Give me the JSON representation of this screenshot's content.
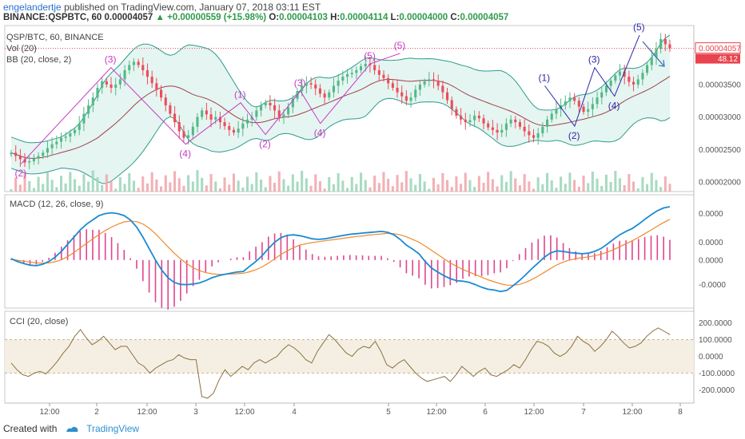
{
  "header": {
    "author": "engelandertje",
    "published_text": "published on TradingView.com, January 07, 2018 03:11 EST"
  },
  "symbol_line": {
    "symbol": "BINANCE:QSPBTC, 60",
    "price": "0.00004057",
    "change": "▲ +0.00000559 (+15.98%)",
    "o_label": "O:",
    "o_value": "0.00004103",
    "h_label": "H:",
    "h_value": "0.00004114",
    "l_label": "L:",
    "l_value": "0.00004000",
    "c_label": "C:",
    "c_value": "0.00004057"
  },
  "colors": {
    "up": "#53b987",
    "down": "#eb4d5c",
    "bb_band": "#2e9c8c",
    "bb_fill": "#dff2ee",
    "bb_basis": "#a0404b",
    "macd": "#1a8ad4",
    "signal": "#f08a2c",
    "hist": "#e0458e",
    "cci": "#8a7040",
    "cci_band": "#f5efe3",
    "wave_magenta": "#c838c8",
    "wave_blue": "#2a2aa8",
    "price_tag": "#e8434e"
  },
  "footer": {
    "created_with": "Created with",
    "brand": "TradingView"
  },
  "chart_data": [
    {
      "type": "candlestick",
      "title": "QSP/BTC, 60, BINANCE",
      "indicators": [
        "Vol (20)",
        "BB (20, close, 2)"
      ],
      "x_tick_labels": [
        "12:00",
        "2",
        "12:00",
        "3",
        "12:00",
        "4",
        "5",
        "12:00",
        "6",
        "12:00",
        "7",
        "12:00",
        "8"
      ],
      "y_tick_labels": [
        "0.00002000",
        "0.00002500",
        "0.00003000",
        "0.00003500"
      ],
      "ylim": [
        1.95e-05,
        4.31e-05
      ],
      "current_price_tag": "0.00004057",
      "volume_tag": "48.12",
      "close": [
        2.45e-05,
        2.4e-05,
        2.35e-05,
        2.3e-05,
        2.32e-05,
        2.36e-05,
        2.4e-05,
        2.45e-05,
        2.52e-05,
        2.58e-05,
        2.62e-05,
        2.68e-05,
        2.7e-05,
        2.75e-05,
        2.8e-05,
        2.9e-05,
        3.05e-05,
        3.18e-05,
        3.3e-05,
        3.45e-05,
        3.55e-05,
        3.5e-05,
        3.45e-05,
        3.5e-05,
        3.58e-05,
        3.72e-05,
        3.8e-05,
        3.85e-05,
        3.8e-05,
        3.72e-05,
        3.62e-05,
        3.52e-05,
        3.42e-05,
        3.3e-05,
        3.18e-05,
        3.05e-05,
        2.92e-05,
        2.78e-05,
        2.68e-05,
        2.72e-05,
        2.85e-05,
        3e-05,
        3.1e-05,
        3.04e-05,
        2.96e-05,
        3e-05,
        2.92e-05,
        2.86e-05,
        2.8e-05,
        2.76e-05,
        2.82e-05,
        2.9e-05,
        2.96e-05,
        3e-05,
        3.1e-05,
        3.18e-05,
        3.22e-05,
        3.18e-05,
        3.1e-05,
        3e-05,
        3.04e-05,
        3.15e-05,
        3.28e-05,
        3.4e-05,
        3.48e-05,
        3.52e-05,
        3.5e-05,
        3.44e-05,
        3.36e-05,
        3.3e-05,
        3.38e-05,
        3.48e-05,
        3.56e-05,
        3.62e-05,
        3.66e-05,
        3.68e-05,
        3.72e-05,
        3.78e-05,
        3.82e-05,
        3.8e-05,
        3.72e-05,
        3.65e-05,
        3.6e-05,
        3.52e-05,
        3.45e-05,
        3.38e-05,
        3.32e-05,
        3.25e-05,
        3.3e-05,
        3.42e-05,
        3.5e-05,
        3.55e-05,
        3.58e-05,
        3.56e-05,
        3.48e-05,
        3.38e-05,
        3.26e-05,
        3.12e-05,
        3.02e-05,
        2.96e-05,
        2.92e-05,
        2.95e-05,
        3.02e-05,
        2.98e-05,
        2.9e-05,
        2.84e-05,
        2.8e-05,
        2.76e-05,
        2.8e-05,
        2.9e-05,
        2.96e-05,
        2.92e-05,
        2.85e-05,
        2.78e-05,
        2.72e-05,
        2.68e-05,
        2.75e-05,
        2.85e-05,
        2.96e-05,
        3.05e-05,
        3.12e-05,
        3.18e-05,
        3.24e-05,
        3.3e-05,
        3.25e-05,
        3.16e-05,
        3.08e-05,
        3.12e-05,
        3.2e-05,
        3.3e-05,
        3.38e-05,
        3.48e-05,
        3.56e-05,
        3.64e-05,
        3.7e-05,
        3.62e-05,
        3.54e-05,
        3.5e-05,
        3.58e-05,
        3.68e-05,
        3.8e-05,
        3.92e-05,
        4.05e-05,
        4.2e-05,
        4.12e-05,
        4.06e-05
      ]
    },
    {
      "type": "line",
      "title": "MACD (12, 26, close, 9)",
      "y_tick_labels": [
        "0.0000",
        "0.0000",
        "0.0000",
        "-0.0000"
      ],
      "macd": [
        0.05,
        -0.05,
        -0.12,
        -0.18,
        -0.2,
        -0.15,
        -0.05,
        0.1,
        0.3,
        0.55,
        0.8,
        1.05,
        1.25,
        1.4,
        1.55,
        1.62,
        1.65,
        1.62,
        1.55,
        1.4,
        1.15,
        0.8,
        0.4,
        0.0,
        -0.35,
        -0.62,
        -0.78,
        -0.85,
        -0.86,
        -0.84,
        -0.8,
        -0.72,
        -0.62,
        -0.55,
        -0.5,
        -0.46,
        -0.42,
        -0.4,
        -0.22,
        -0.05,
        0.15,
        0.4,
        0.62,
        0.78,
        0.86,
        0.88,
        0.85,
        0.8,
        0.74,
        0.72,
        0.74,
        0.78,
        0.82,
        0.86,
        0.9,
        0.92,
        0.94,
        0.96,
        0.98,
        1.0,
        0.97,
        0.88,
        0.72,
        0.52,
        0.38,
        0.22,
        -0.05,
        -0.28,
        -0.42,
        -0.55,
        -0.65,
        -0.72,
        -0.74,
        -0.78,
        -0.86,
        -0.95,
        -1.02,
        -1.05,
        -1.1,
        -1.06,
        -0.9,
        -0.72,
        -0.52,
        -0.3,
        -0.1,
        0.1,
        0.25,
        0.32,
        0.3,
        0.26,
        0.24,
        0.22,
        0.24,
        0.3,
        0.4,
        0.55,
        0.72,
        0.88,
        1.0,
        1.1,
        1.25,
        1.42,
        1.58,
        1.72,
        1.82,
        1.86
      ],
      "signal": [
        0.02,
        -0.01,
        -0.04,
        -0.07,
        -0.1,
        -0.11,
        -0.1,
        -0.06,
        0.01,
        0.12,
        0.26,
        0.42,
        0.58,
        0.74,
        0.89,
        1.03,
        1.15,
        1.25,
        1.33,
        1.36,
        1.34,
        1.26,
        1.11,
        0.92,
        0.69,
        0.46,
        0.24,
        0.04,
        -0.13,
        -0.27,
        -0.37,
        -0.44,
        -0.48,
        -0.5,
        -0.5,
        -0.49,
        -0.48,
        -0.46,
        -0.41,
        -0.34,
        -0.24,
        -0.11,
        0.04,
        0.19,
        0.32,
        0.43,
        0.52,
        0.57,
        0.61,
        0.64,
        0.67,
        0.7,
        0.73,
        0.76,
        0.79,
        0.82,
        0.84,
        0.87,
        0.89,
        0.91,
        0.93,
        0.92,
        0.88,
        0.81,
        0.72,
        0.62,
        0.49,
        0.34,
        0.19,
        0.04,
        -0.1,
        -0.22,
        -0.33,
        -0.42,
        -0.51,
        -0.6,
        -0.69,
        -0.76,
        -0.83,
        -0.88,
        -0.88,
        -0.85,
        -0.78,
        -0.68,
        -0.56,
        -0.43,
        -0.29,
        -0.17,
        -0.07,
        0.0,
        0.05,
        0.08,
        0.11,
        0.15,
        0.2,
        0.27,
        0.36,
        0.46,
        0.57,
        0.67,
        0.79,
        0.92,
        1.05,
        1.18,
        1.31,
        1.42
      ]
    },
    {
      "type": "line",
      "title": "CCI (20, close)",
      "y_tick_labels": [
        "200.0000",
        "100.0000",
        "0.0000",
        "-100.0000",
        "-200.0000"
      ],
      "ylim": [
        -260,
        250
      ],
      "band": [
        -100,
        100
      ],
      "cci": [
        -40,
        -80,
        -110,
        -120,
        -100,
        -90,
        -105,
        -70,
        -30,
        20,
        60,
        120,
        160,
        110,
        70,
        90,
        120,
        80,
        40,
        60,
        60,
        10,
        -40,
        -60,
        -100,
        -70,
        -50,
        -30,
        -20,
        10,
        -10,
        -20,
        -20,
        -240,
        -250,
        -220,
        -140,
        -80,
        -120,
        -90,
        -60,
        -80,
        -40,
        -20,
        -40,
        -20,
        0,
        40,
        70,
        50,
        20,
        -20,
        -40,
        30,
        80,
        130,
        100,
        60,
        20,
        0,
        40,
        60,
        50,
        90,
        30,
        -50,
        -70,
        -40,
        -20,
        -60,
        -100,
        -130,
        -150,
        -140,
        -130,
        -120,
        -150,
        -110,
        -60,
        -90,
        -120,
        -90,
        -70,
        -110,
        -120,
        -100,
        -80,
        -50,
        -70,
        -20,
        40,
        90,
        80,
        60,
        20,
        0,
        20,
        60,
        120,
        90,
        70,
        30,
        60,
        100,
        150,
        120,
        80,
        50,
        60,
        80,
        120,
        150,
        170,
        150,
        130
      ]
    }
  ]
}
